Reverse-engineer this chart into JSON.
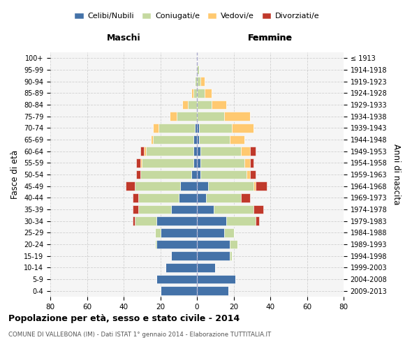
{
  "age_groups": [
    "0-4",
    "5-9",
    "10-14",
    "15-19",
    "20-24",
    "25-29",
    "30-34",
    "35-39",
    "40-44",
    "45-49",
    "50-54",
    "55-59",
    "60-64",
    "65-69",
    "70-74",
    "75-79",
    "80-84",
    "85-89",
    "90-94",
    "95-99",
    "100+"
  ],
  "birth_years": [
    "2009-2013",
    "2004-2008",
    "1999-2003",
    "1994-1998",
    "1989-1993",
    "1984-1988",
    "1979-1983",
    "1974-1978",
    "1969-1973",
    "1964-1968",
    "1959-1963",
    "1954-1958",
    "1949-1953",
    "1944-1948",
    "1939-1943",
    "1934-1938",
    "1929-1933",
    "1924-1928",
    "1919-1923",
    "1914-1918",
    "≤ 1913"
  ],
  "males": {
    "celibi": [
      20,
      22,
      17,
      14,
      22,
      20,
      22,
      14,
      10,
      9,
      3,
      2,
      2,
      2,
      1,
      0,
      0,
      0,
      0,
      0,
      0
    ],
    "coniugati": [
      0,
      0,
      0,
      0,
      1,
      3,
      12,
      18,
      22,
      25,
      28,
      28,
      26,
      22,
      20,
      11,
      5,
      2,
      1,
      0,
      0
    ],
    "vedovi": [
      0,
      0,
      0,
      0,
      0,
      0,
      0,
      0,
      0,
      0,
      0,
      1,
      1,
      1,
      3,
      4,
      3,
      1,
      0,
      0,
      0
    ],
    "divorziati": [
      0,
      0,
      0,
      0,
      0,
      0,
      1,
      3,
      3,
      5,
      2,
      2,
      2,
      0,
      0,
      0,
      0,
      0,
      0,
      0,
      0
    ]
  },
  "females": {
    "nubili": [
      17,
      21,
      10,
      18,
      18,
      15,
      16,
      9,
      5,
      6,
      2,
      2,
      2,
      1,
      1,
      0,
      0,
      0,
      0,
      0,
      0
    ],
    "coniugate": [
      0,
      0,
      0,
      1,
      4,
      5,
      16,
      22,
      19,
      25,
      25,
      24,
      22,
      17,
      18,
      15,
      8,
      4,
      2,
      1,
      0
    ],
    "vedove": [
      0,
      0,
      0,
      0,
      0,
      0,
      0,
      0,
      0,
      1,
      2,
      3,
      5,
      8,
      12,
      14,
      8,
      4,
      2,
      0,
      0
    ],
    "divorziate": [
      0,
      0,
      0,
      0,
      0,
      0,
      2,
      5,
      5,
      6,
      3,
      2,
      3,
      0,
      0,
      0,
      0,
      0,
      0,
      0,
      0
    ]
  },
  "colors": {
    "celibi_nubili": "#4472a8",
    "coniugati": "#c5d9a0",
    "vedovi": "#ffc970",
    "divorziati": "#c0392b"
  },
  "xlim": 80,
  "title": "Popolazione per età, sesso e stato civile - 2014",
  "subtitle": "COMUNE DI VALLEBONA (IM) - Dati ISTAT 1° gennaio 2014 - Elaborazione TUTTITALIA.IT",
  "ylabel_left": "Fasce di età",
  "ylabel_right": "Anni di nascita",
  "label_maschi": "Maschi",
  "label_femmine": "Femmine"
}
